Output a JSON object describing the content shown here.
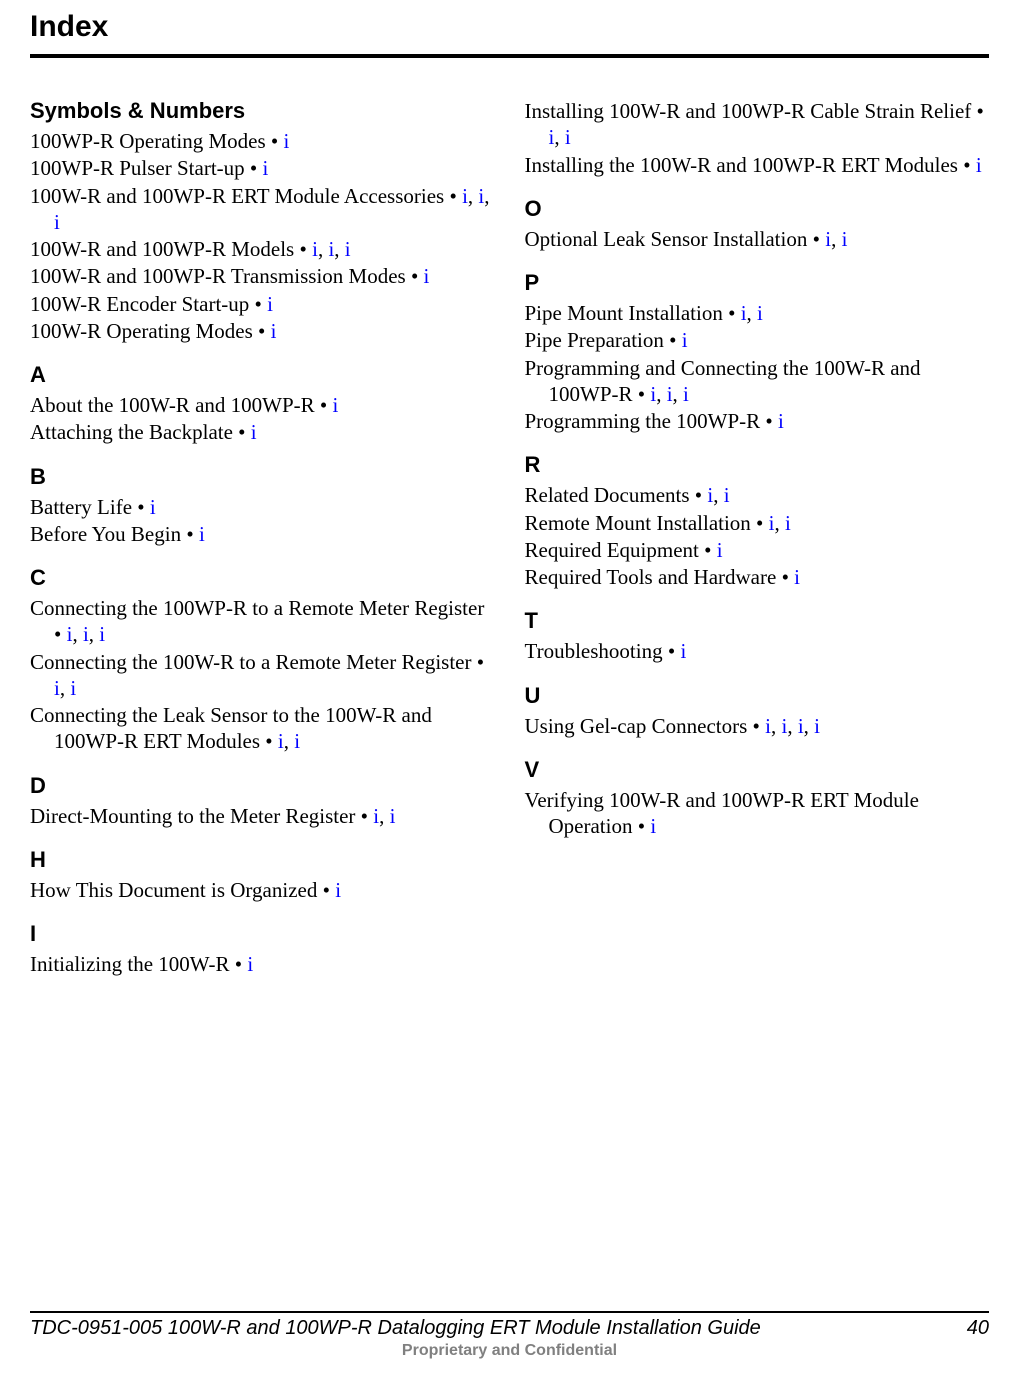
{
  "page_title": "Index",
  "link_color": "#0000ff",
  "text_color": "#000000",
  "footer_color": "#808080",
  "columns": [
    {
      "sections": [
        {
          "heading": "Symbols & Numbers",
          "entries": [
            {
              "text": "100WP-R Operating Modes • ",
              "refs": [
                "i"
              ]
            },
            {
              "text": "100WP-R Pulser Start-up • ",
              "refs": [
                "i"
              ]
            },
            {
              "text": "100W-R and 100WP-R ERT Module Accessories • ",
              "refs": [
                "i",
                "i",
                "i"
              ]
            },
            {
              "text": "100W-R and 100WP-R Models • ",
              "refs": [
                "i",
                "i",
                "i"
              ]
            },
            {
              "text": "100W-R and 100WP-R Transmission Modes • ",
              "refs": [
                "i"
              ]
            },
            {
              "text": "100W-R Encoder Start-up • ",
              "refs": [
                "i"
              ]
            },
            {
              "text": "100W-R Operating Modes • ",
              "refs": [
                "i"
              ]
            }
          ]
        },
        {
          "heading": "A",
          "entries": [
            {
              "text": "About the 100W-R and 100WP-R • ",
              "refs": [
                "i"
              ]
            },
            {
              "text": "Attaching the Backplate • ",
              "refs": [
                "i"
              ]
            }
          ]
        },
        {
          "heading": "B",
          "entries": [
            {
              "text": "Battery Life • ",
              "refs": [
                "i"
              ]
            },
            {
              "text": "Before You Begin • ",
              "refs": [
                "i"
              ]
            }
          ]
        },
        {
          "heading": "C",
          "entries": [
            {
              "text": "Connecting the 100WP-R to a Remote Meter Register • ",
              "refs": [
                "i",
                "i",
                "i"
              ]
            },
            {
              "text": "Connecting the 100W-R to a Remote Meter Register • ",
              "refs": [
                "i",
                "i"
              ]
            },
            {
              "text": "Connecting the Leak Sensor to the 100W-R and 100WP-R ERT Modules • ",
              "refs": [
                "i",
                "i"
              ]
            }
          ]
        },
        {
          "heading": "D",
          "entries": [
            {
              "text": "Direct-Mounting to the Meter Register • ",
              "refs": [
                "i",
                "i"
              ]
            }
          ]
        },
        {
          "heading": "H",
          "entries": [
            {
              "text": "How This Document is Organized • ",
              "refs": [
                "i"
              ]
            }
          ]
        },
        {
          "heading": "I",
          "entries": [
            {
              "text": "Initializing the 100W-R • ",
              "refs": [
                "i"
              ]
            }
          ]
        }
      ]
    },
    {
      "sections": [
        {
          "heading": "",
          "entries": [
            {
              "text": "Installing 100W-R and 100WP-R Cable Strain Relief • ",
              "refs": [
                "i",
                "i"
              ]
            },
            {
              "text": "Installing the 100W-R and 100WP-R ERT Modules • ",
              "refs": [
                "i"
              ]
            }
          ]
        },
        {
          "heading": "O",
          "entries": [
            {
              "text": "Optional Leak Sensor Installation • ",
              "refs": [
                "i",
                "i"
              ]
            }
          ]
        },
        {
          "heading": "P",
          "entries": [
            {
              "text": "Pipe Mount Installation • ",
              "refs": [
                "i",
                "i"
              ]
            },
            {
              "text": "Pipe Preparation • ",
              "refs": [
                "i"
              ]
            },
            {
              "text": "Programming and Connecting the 100W-R and 100WP-R • ",
              "refs": [
                "i",
                "i",
                "i"
              ]
            },
            {
              "text": "Programming the 100WP-R • ",
              "refs": [
                "i"
              ]
            }
          ]
        },
        {
          "heading": "R",
          "entries": [
            {
              "text": "Related Documents • ",
              "refs": [
                "i",
                "i"
              ]
            },
            {
              "text": "Remote Mount Installation • ",
              "refs": [
                "i",
                "i"
              ]
            },
            {
              "text": "Required Equipment • ",
              "refs": [
                "i"
              ]
            },
            {
              "text": "Required Tools and Hardware • ",
              "refs": [
                "i"
              ]
            }
          ]
        },
        {
          "heading": "T",
          "entries": [
            {
              "text": "Troubleshooting • ",
              "refs": [
                "i"
              ]
            }
          ]
        },
        {
          "heading": "U",
          "entries": [
            {
              "text": "Using Gel-cap Connectors • ",
              "refs": [
                "i",
                "i",
                "i",
                "i"
              ]
            }
          ]
        },
        {
          "heading": "V",
          "entries": [
            {
              "text": "Verifying 100W-R and 100WP-R ERT Module Operation • ",
              "refs": [
                "i"
              ]
            }
          ]
        }
      ]
    }
  ],
  "footer": {
    "doc_title": "TDC-0951-005 100W-R and 100WP-R Datalogging ERT Module Installation Guide",
    "page_number": "40",
    "confidential": "Proprietary and Confidential"
  }
}
